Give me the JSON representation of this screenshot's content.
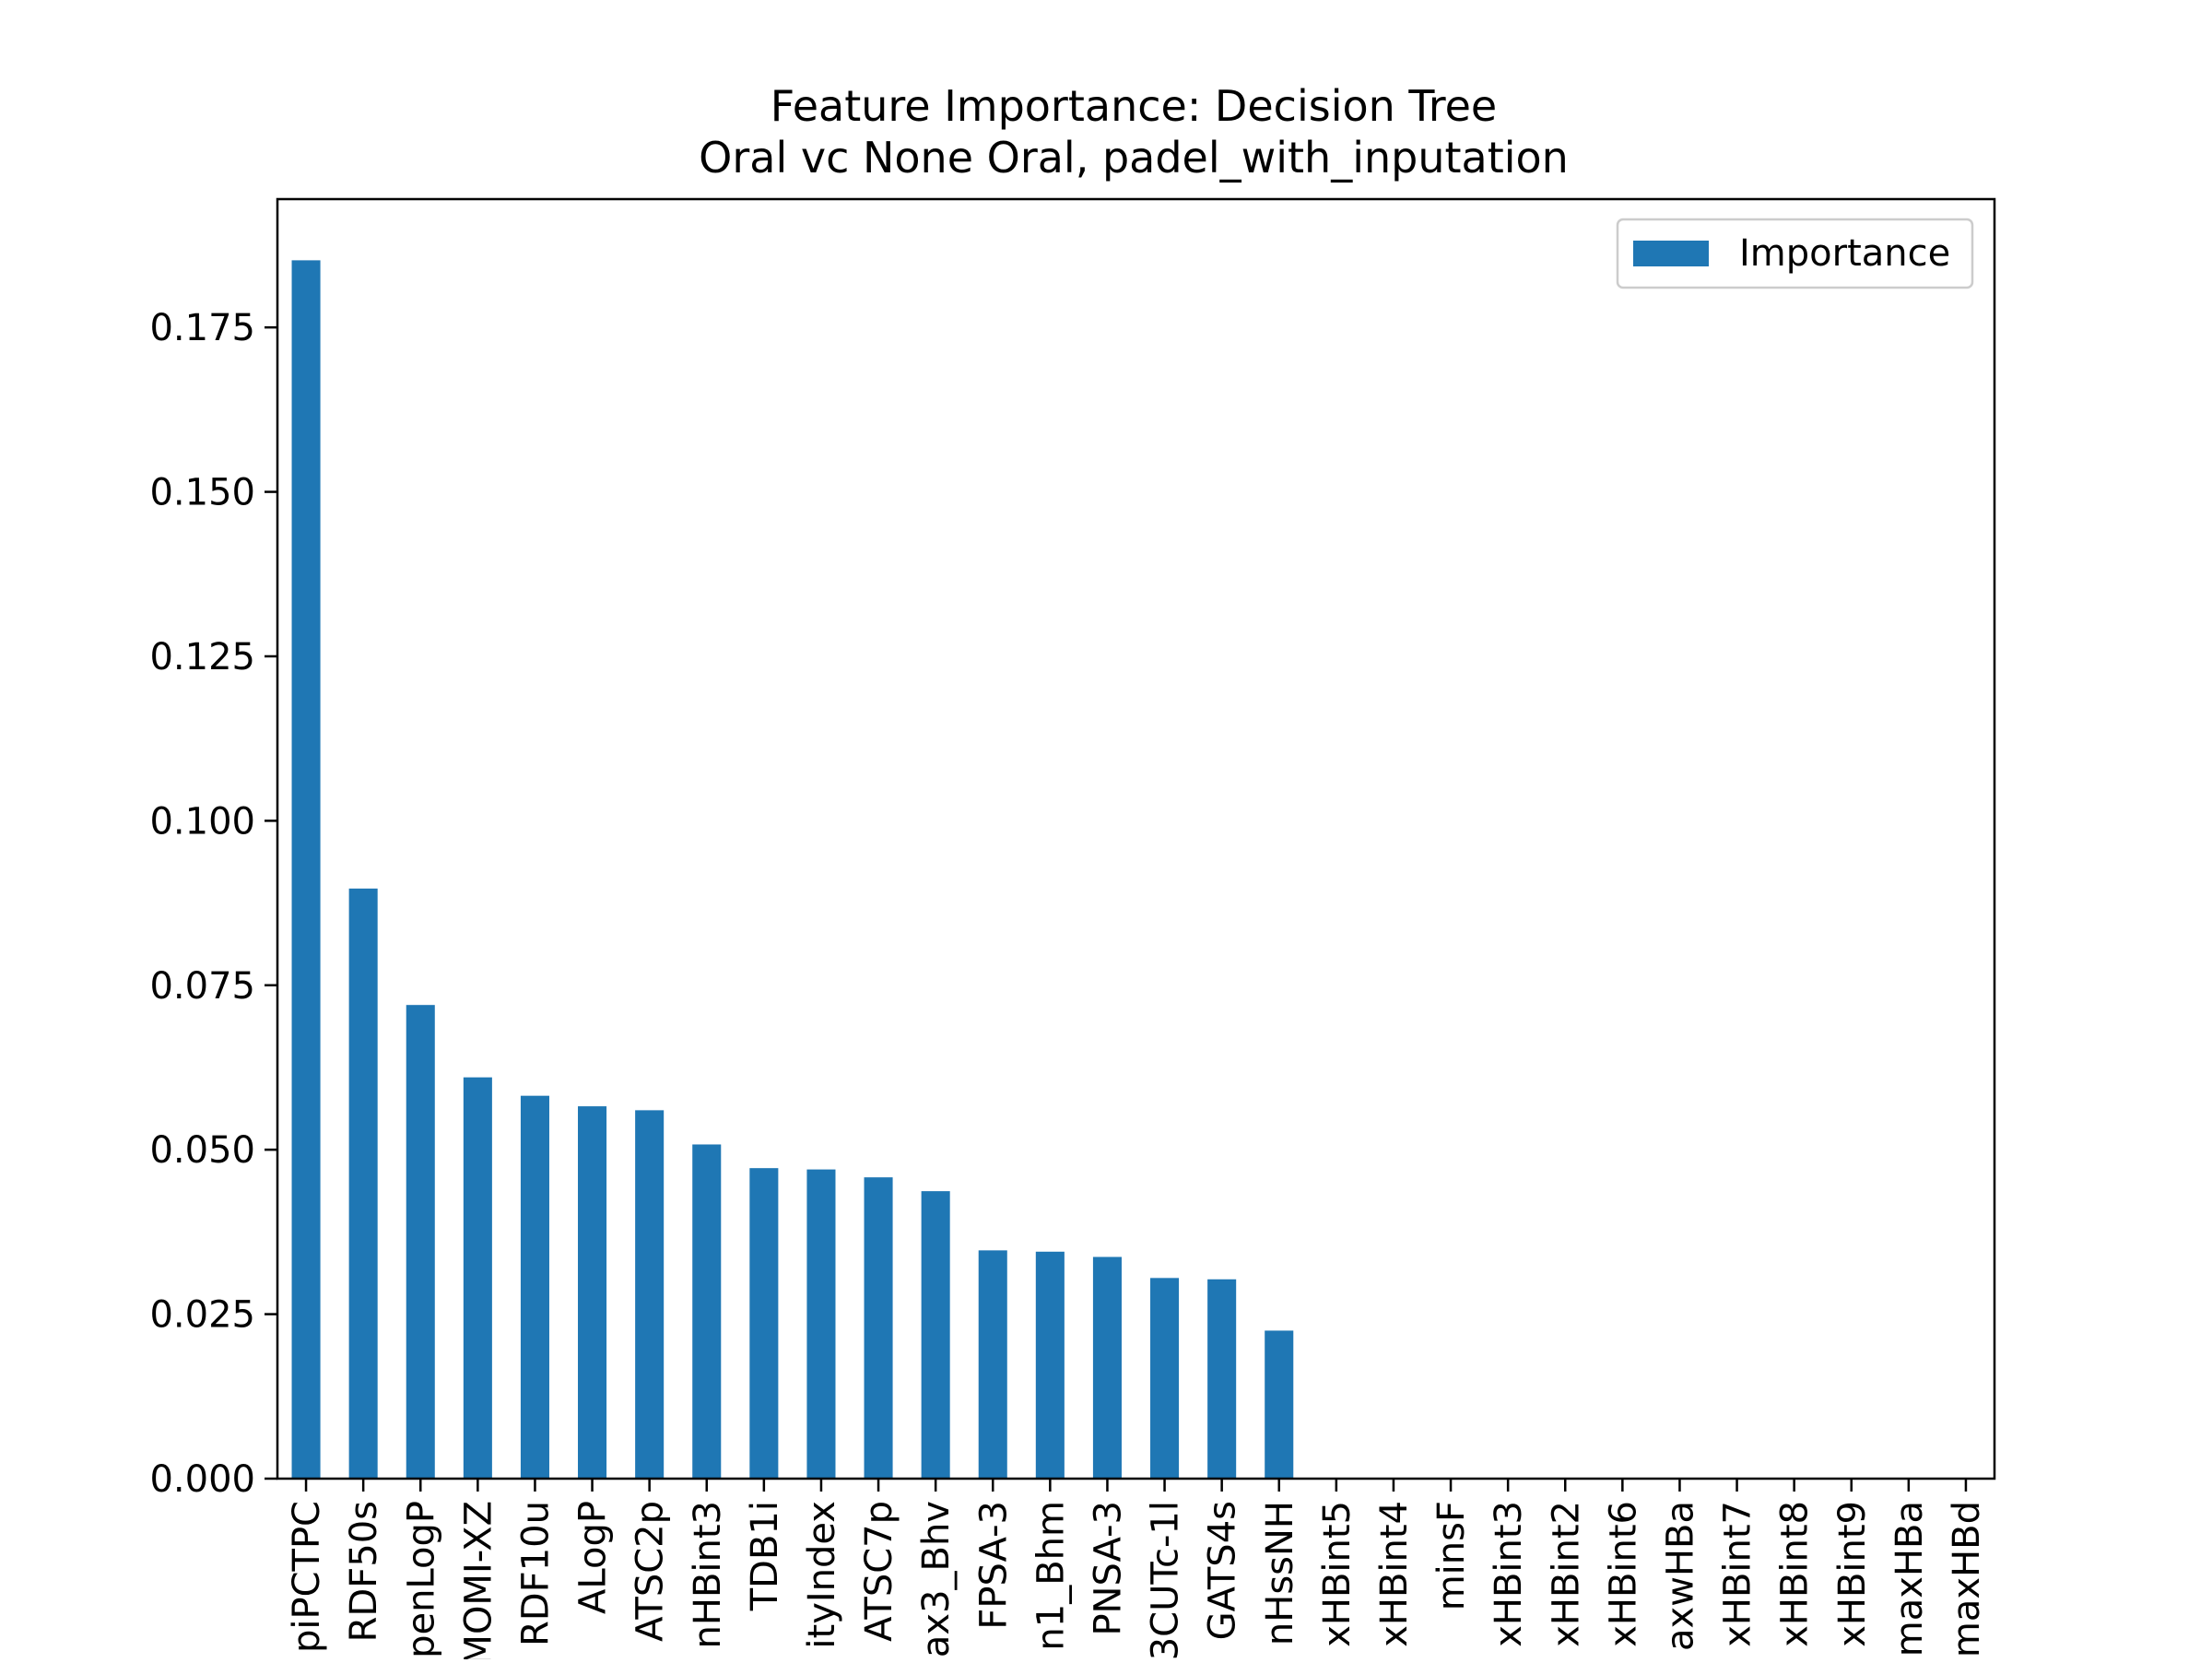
{
  "chart_data": {
    "type": "bar",
    "title": "Feature Importance: Decision Tree",
    "subtitle": "Oral vc None Oral, padel_with_inputation",
    "xlabel": "",
    "ylabel": "",
    "ylim": [
      0,
      0.1945
    ],
    "yticks": [
      0.0,
      0.025,
      0.05,
      0.075,
      0.1,
      0.125,
      0.15,
      0.175
    ],
    "ytick_labels": [
      "0.000",
      "0.025",
      "0.050",
      "0.075",
      "0.100",
      "0.125",
      "0.150",
      "0.175"
    ],
    "grid": false,
    "legend_position": "top-right",
    "bar_color": "#1f77b4",
    "categories": [
      "piPCTPC",
      "RDF50s",
      "penLogP",
      "MOMI-XZ",
      "RDF10u",
      "ALogP",
      "ATSC2p",
      "nHBint3",
      "TDB1i",
      "ityIndex",
      "ATSC7p",
      "ax3_Bhv",
      "FPSA-3",
      "n1_Bhm",
      "PNSA-3",
      "3CUTc-1l",
      "GATS4s",
      "nHssNH",
      "xHBint5",
      "xHBint4",
      "minsF",
      "xHBint3",
      "xHBint2",
      "xHBint6",
      "axwHBa",
      "xHBint7",
      "xHBint8",
      "xHBint9",
      "maxHBa",
      "maxHBd"
    ],
    "series": [
      {
        "name": "Importance",
        "values": [
          0.1852,
          0.0897,
          0.072,
          0.061,
          0.0582,
          0.0566,
          0.056,
          0.0508,
          0.0472,
          0.047,
          0.0458,
          0.0437,
          0.0347,
          0.0345,
          0.0337,
          0.0305,
          0.0303,
          0.0225,
          0,
          0,
          0,
          0,
          0,
          0,
          0,
          0,
          0,
          0,
          0,
          0
        ]
      }
    ]
  }
}
